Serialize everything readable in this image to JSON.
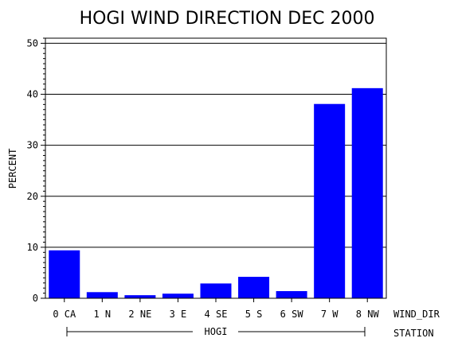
{
  "chart_data": {
    "type": "bar",
    "title": "HOGI WIND DIRECTION DEC 2000",
    "ylabel": "PERCENT",
    "xlabel": "WIND_DIR",
    "group_label": "STATION",
    "group_name": "HOGI",
    "ylim": [
      0,
      51
    ],
    "yticks": [
      0,
      10,
      20,
      30,
      40,
      50
    ],
    "grid": true,
    "bar_color": "#0000ff",
    "categories": [
      "0 CA",
      "1 N",
      "2 NE",
      "3 E",
      "4 SE",
      "5 S",
      "6 SW",
      "7 W",
      "8 NW"
    ],
    "values": [
      9.4,
      1.2,
      0.6,
      0.9,
      2.9,
      4.2,
      1.4,
      38.1,
      41.2
    ]
  }
}
